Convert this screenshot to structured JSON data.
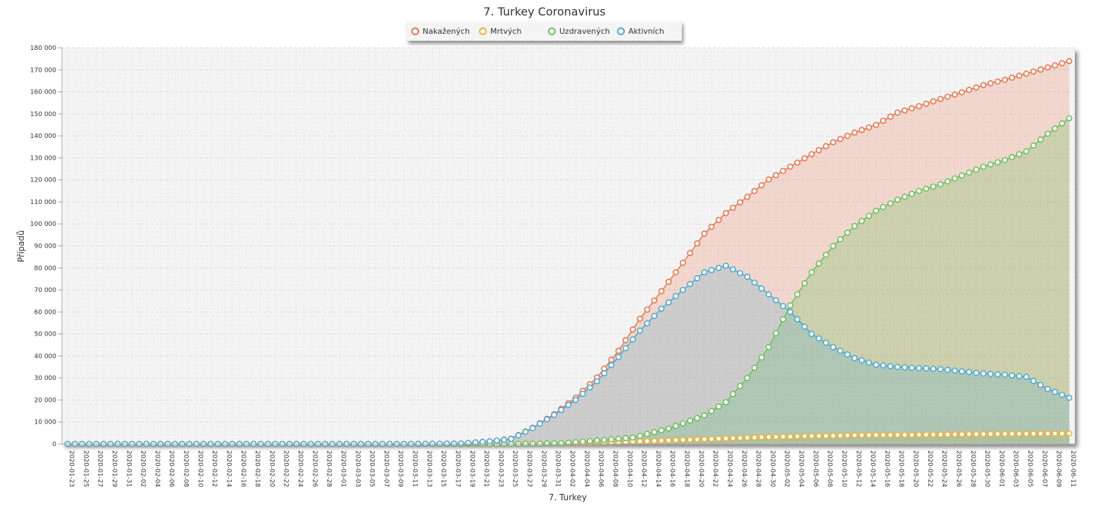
{
  "colors": {
    "infected": "#e8734a",
    "deaths": "#f0b030",
    "recovered": "#6bbf5a",
    "active": "#4aa8cf",
    "plot_background": "#f4f4f4"
  },
  "chart_data": {
    "type": "area",
    "title": "7. Turkey Coronavirus",
    "xlabel": "7. Turkey",
    "ylabel": "Případů",
    "ylim": [
      0,
      180000
    ],
    "yticks": [
      0,
      10000,
      20000,
      30000,
      40000,
      50000,
      60000,
      70000,
      80000,
      90000,
      100000,
      110000,
      120000,
      130000,
      140000,
      150000,
      160000,
      170000,
      180000
    ],
    "ytick_labels": [
      "0",
      "10 000",
      "20 000",
      "30 000",
      "40 000",
      "50 000",
      "60 000",
      "70 000",
      "80 000",
      "90 000",
      "100 000",
      "110 000",
      "120 000",
      "130 000",
      "140 000",
      "150 000",
      "160 000",
      "170 000",
      "180 000"
    ],
    "xrange": [
      "2020-01-23",
      "2020-06-11"
    ],
    "xtick_labels": [
      "2020-01-23",
      "2020-01-25",
      "2020-01-27",
      "2020-01-29",
      "2020-01-31",
      "2020-02-02",
      "2020-02-04",
      "2020-02-06",
      "2020-02-08",
      "2020-02-10",
      "2020-02-12",
      "2020-02-14",
      "2020-02-16",
      "2020-02-18",
      "2020-02-20",
      "2020-02-22",
      "2020-02-24",
      "2020-02-26",
      "2020-02-28",
      "2020-03-01",
      "2020-03-03",
      "2020-03-05",
      "2020-03-07",
      "2020-03-09",
      "2020-03-11",
      "2020-03-13",
      "2020-03-15",
      "2020-03-17",
      "2020-03-19",
      "2020-03-21",
      "2020-03-23",
      "2020-03-25",
      "2020-03-27",
      "2020-03-29",
      "2020-03-31",
      "2020-04-02",
      "2020-04-04",
      "2020-04-06",
      "2020-04-08",
      "2020-04-10",
      "2020-04-12",
      "2020-04-14",
      "2020-04-16",
      "2020-04-18",
      "2020-04-20",
      "2020-04-22",
      "2020-04-24",
      "2020-04-26",
      "2020-04-28",
      "2020-04-30",
      "2020-05-02",
      "2020-05-04",
      "2020-05-06",
      "2020-05-08",
      "2020-05-10",
      "2020-05-12",
      "2020-05-14",
      "2020-05-16",
      "2020-05-18",
      "2020-05-20",
      "2020-05-22",
      "2020-05-24",
      "2020-05-26",
      "2020-05-28",
      "2020-05-30",
      "2020-06-01",
      "2020-06-03",
      "2020-06-05",
      "2020-06-07",
      "2020-06-09",
      "2020-06-11"
    ],
    "grid": true,
    "legend_position": "top-center",
    "series_keyframes_note": "",
    "series": [
      {
        "name": "Nakažených",
        "color_key": "infected",
        "points": [
          [
            "2020-01-23",
            0
          ],
          [
            "2020-03-10",
            0
          ],
          [
            "2020-03-18",
            200
          ],
          [
            "2020-03-22",
            1200
          ],
          [
            "2020-03-25",
            2400
          ],
          [
            "2020-03-28",
            7400
          ],
          [
            "2020-03-31",
            13500
          ],
          [
            "2020-04-03",
            21000
          ],
          [
            "2020-04-06",
            30200
          ],
          [
            "2020-04-09",
            42300
          ],
          [
            "2020-04-12",
            56900
          ],
          [
            "2020-04-15",
            69400
          ],
          [
            "2020-04-18",
            82300
          ],
          [
            "2020-04-21",
            95600
          ],
          [
            "2020-04-24",
            104900
          ],
          [
            "2020-04-27",
            112300
          ],
          [
            "2020-04-30",
            120200
          ],
          [
            "2020-05-03",
            126000
          ],
          [
            "2020-05-06",
            131700
          ],
          [
            "2020-05-09",
            137100
          ],
          [
            "2020-05-12",
            141500
          ],
          [
            "2020-05-15",
            145000
          ],
          [
            "2020-05-18",
            150600
          ],
          [
            "2020-05-21",
            153500
          ],
          [
            "2020-05-24",
            156800
          ],
          [
            "2020-05-27",
            159800
          ],
          [
            "2020-05-30",
            163100
          ],
          [
            "2020-06-02",
            165500
          ],
          [
            "2020-06-05",
            168300
          ],
          [
            "2020-06-08",
            171100
          ],
          [
            "2020-06-11",
            174000
          ]
        ]
      },
      {
        "name": "Mrtvých",
        "color_key": "deaths",
        "points": [
          [
            "2020-01-23",
            0
          ],
          [
            "2020-03-17",
            0
          ],
          [
            "2020-03-25",
            60
          ],
          [
            "2020-04-01",
            280
          ],
          [
            "2020-04-08",
            810
          ],
          [
            "2020-04-15",
            1520
          ],
          [
            "2020-04-22",
            2300
          ],
          [
            "2020-04-29",
            3100
          ],
          [
            "2020-05-06",
            3600
          ],
          [
            "2020-05-13",
            4000
          ],
          [
            "2020-05-20",
            4200
          ],
          [
            "2020-05-27",
            4400
          ],
          [
            "2020-06-03",
            4600
          ],
          [
            "2020-06-11",
            4800
          ]
        ]
      },
      {
        "name": "Uzdravených",
        "color_key": "recovered",
        "points": [
          [
            "2020-01-23",
            0
          ],
          [
            "2020-03-25",
            0
          ],
          [
            "2020-04-01",
            300
          ],
          [
            "2020-04-06",
            1600
          ],
          [
            "2020-04-11",
            2900
          ],
          [
            "2020-04-16",
            7000
          ],
          [
            "2020-04-21",
            13000
          ],
          [
            "2020-04-24",
            19000
          ],
          [
            "2020-04-27",
            30000
          ],
          [
            "2020-04-30",
            44000
          ],
          [
            "2020-05-03",
            63000
          ],
          [
            "2020-05-06",
            78000
          ],
          [
            "2020-05-09",
            90000
          ],
          [
            "2020-05-12",
            99000
          ],
          [
            "2020-05-15",
            106000
          ],
          [
            "2020-05-18",
            111000
          ],
          [
            "2020-05-21",
            115000
          ],
          [
            "2020-05-24",
            118000
          ],
          [
            "2020-05-27",
            122000
          ],
          [
            "2020-05-30",
            126000
          ],
          [
            "2020-06-02",
            129000
          ],
          [
            "2020-06-05",
            133000
          ],
          [
            "2020-06-08",
            141000
          ],
          [
            "2020-06-11",
            148000
          ]
        ]
      },
      {
        "name": "Aktivních",
        "color_key": "active",
        "points": [
          [
            "2020-01-23",
            0
          ],
          [
            "2020-03-10",
            0
          ],
          [
            "2020-03-18",
            200
          ],
          [
            "2020-03-22",
            1200
          ],
          [
            "2020-03-25",
            2300
          ],
          [
            "2020-03-28",
            7200
          ],
          [
            "2020-03-31",
            13200
          ],
          [
            "2020-04-03",
            20000
          ],
          [
            "2020-04-06",
            28500
          ],
          [
            "2020-04-09",
            39500
          ],
          [
            "2020-04-12",
            51500
          ],
          [
            "2020-04-15",
            61500
          ],
          [
            "2020-04-18",
            70000
          ],
          [
            "2020-04-21",
            78000
          ],
          [
            "2020-04-24",
            81000
          ],
          [
            "2020-04-27",
            76000
          ],
          [
            "2020-04-30",
            68000
          ],
          [
            "2020-05-03",
            60000
          ],
          [
            "2020-05-06",
            50000
          ],
          [
            "2020-05-09",
            44000
          ],
          [
            "2020-05-12",
            39000
          ],
          [
            "2020-05-15",
            36000
          ],
          [
            "2020-05-18",
            35000
          ],
          [
            "2020-05-21",
            34500
          ],
          [
            "2020-05-24",
            34000
          ],
          [
            "2020-05-27",
            33000
          ],
          [
            "2020-05-30",
            32000
          ],
          [
            "2020-06-02",
            31500
          ],
          [
            "2020-06-05",
            30500
          ],
          [
            "2020-06-08",
            25000
          ],
          [
            "2020-06-11",
            21000
          ]
        ]
      }
    ]
  }
}
